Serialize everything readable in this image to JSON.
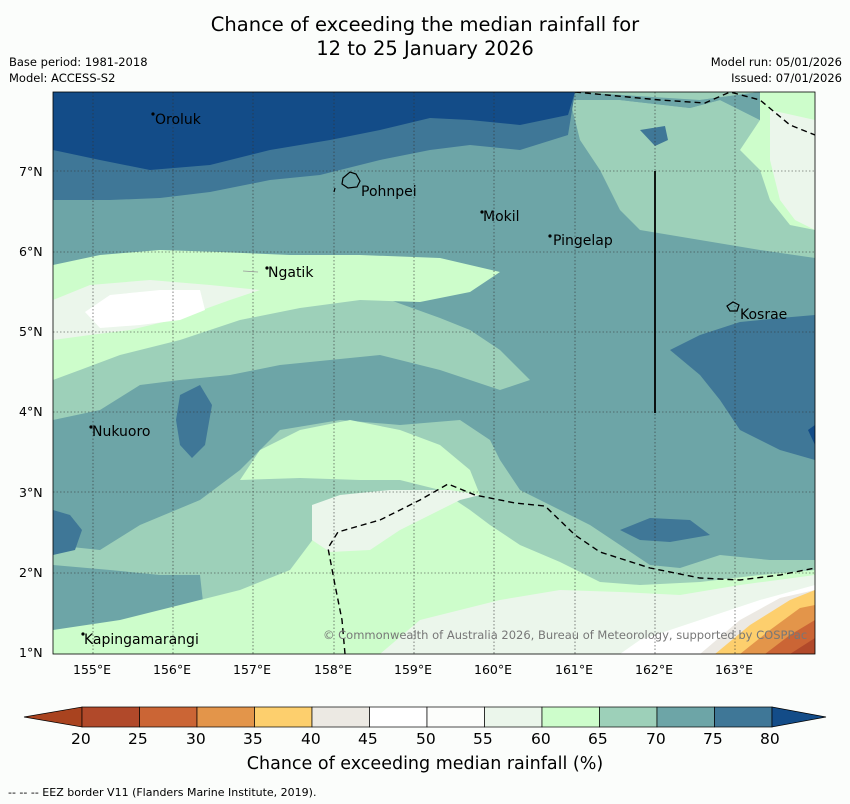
{
  "title": {
    "line1": "Chance of exceeding the median rainfall for",
    "line2": "12 to 25 January 2026"
  },
  "meta_left": {
    "base_period": "Base period: 1981-2018",
    "model": "Model: ACCESS-S2"
  },
  "meta_right": {
    "model_run": "Model run: 05/01/2026",
    "issued": "Issued: 07/01/2026"
  },
  "map": {
    "lat_labels": [
      "7°N",
      "6°N",
      "5°N",
      "4°N",
      "3°N",
      "2°N",
      "1°N"
    ],
    "lon_labels": [
      "155°E",
      "156°E",
      "157°E",
      "158°E",
      "159°E",
      "160°E",
      "161°E",
      "162°E",
      "163°E"
    ],
    "places": [
      "Oroluk",
      "Pohnpei",
      "Mokil",
      "Pingelap",
      "Ngatik",
      "Kosrae",
      "Nukuoro",
      "Kapingamarangi"
    ],
    "copyright": "© Commonwealth of Australia 2026, Bureau of Meteorology, supported by COSPPac"
  },
  "colorbar": {
    "ticks": [
      "20",
      "25",
      "30",
      "35",
      "40",
      "45",
      "50",
      "55",
      "60",
      "65",
      "70",
      "75",
      "80"
    ],
    "colors": [
      "#a9431f",
      "#b1492a",
      "#cb6535",
      "#e3954a",
      "#fdcf6d",
      "#ece9e3",
      "#ffffff",
      "#fcfdfb",
      "#ebf6eb",
      "#cdfdcb",
      "#9dd0b9",
      "#6da5a7",
      "#3f7797",
      "#134c88"
    ],
    "title": "Chance of exceeding median rainfall (%)"
  },
  "footnote": "-- -- -- EEZ border V11 (Flanders Marine Institute, 2019)."
}
